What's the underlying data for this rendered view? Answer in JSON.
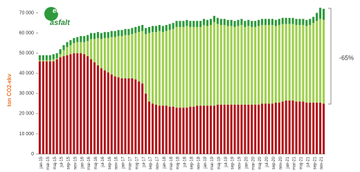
{
  "chart_data": {
    "type": "stacked-bar",
    "y_label": "ton CO2-ekv",
    "annotation": "-65%",
    "logo": {
      "top": "eco",
      "bottom": "asfalt"
    },
    "categories": [
      "jan-15",
      null,
      "mar-15",
      null,
      "maj-15",
      null,
      "jul-15",
      null,
      "sep-15",
      null,
      "nov-15",
      null,
      "jan-16",
      null,
      "mar-16",
      null,
      "maj-16",
      null,
      "jul-16",
      null,
      "sep-16",
      null,
      "nov-16",
      null,
      "jan-17",
      null,
      "mar-17",
      null,
      "maj-17",
      null,
      "jul-17",
      null,
      "sep-17",
      null,
      "nov-17",
      null,
      "jan-18",
      null,
      "mar-18",
      null,
      "maj-18",
      null,
      "jul-18",
      null,
      "sep-18",
      null,
      "nov-18",
      null,
      "jan-19",
      null,
      "mar-19",
      null,
      "maj-19",
      null,
      "jul-19",
      null,
      "sep-19",
      null,
      "nov-19",
      null,
      "jan-20",
      null,
      "mar-20",
      null,
      "maj-20",
      null,
      "jul-20",
      null,
      "sep-20",
      null,
      "nov-20",
      null,
      "jan-21",
      null,
      "mar-21",
      null,
      "maj-21",
      null,
      "jul-21",
      null,
      "sep-21",
      null,
      "nov-21",
      null
    ],
    "series": [
      {
        "color": "#b0161b",
        "values": [
          46000,
          46000,
          46000,
          46000,
          46000,
          47000,
          48000,
          48500,
          49000,
          49500,
          50000,
          50000,
          50000,
          49500,
          48500,
          47000,
          45500,
          44000,
          42500,
          41500,
          40500,
          39500,
          38500,
          38000,
          37500,
          37500,
          37500,
          37500,
          37000,
          36000,
          35000,
          30000,
          26000,
          25000,
          24500,
          24000,
          24000,
          24000,
          23500,
          23500,
          23000,
          23000,
          23000,
          23000,
          23500,
          23500,
          24000,
          24000,
          24000,
          24000,
          24000,
          24000,
          24500,
          24500,
          24500,
          24500,
          24500,
          24500,
          24500,
          24500,
          24500,
          24500,
          24500,
          24500,
          24500,
          25000,
          25000,
          25000,
          25000,
          25500,
          25500,
          26000,
          26500,
          26500,
          26500,
          26000,
          26000,
          26000,
          25500,
          25500,
          25500,
          25500,
          25500,
          25000
        ]
      },
      {
        "color": "#9fd04f",
        "values": [
          500,
          500,
          500,
          500,
          1000,
          500,
          1500,
          3000,
          4000,
          4500,
          5000,
          5500,
          5500,
          6000,
          7500,
          10000,
          11500,
          13500,
          14500,
          16000,
          17000,
          18500,
          19500,
          20500,
          21000,
          21500,
          21500,
          22000,
          23000,
          24500,
          26000,
          29500,
          34000,
          35500,
          36000,
          37000,
          36500,
          37000,
          38000,
          38500,
          40000,
          40000,
          40000,
          40500,
          39500,
          39500,
          39000,
          39000,
          40000,
          39500,
          40000,
          41500,
          40000,
          39500,
          39500,
          39000,
          39000,
          38500,
          39000,
          39500,
          38500,
          39000,
          38500,
          38500,
          39000,
          39000,
          39000,
          39000,
          39000,
          38000,
          38500,
          38500,
          38000,
          38000,
          38000,
          38000,
          38000,
          38000,
          38000,
          38500,
          39500,
          40500,
          41500,
          41500
        ]
      },
      {
        "color": "#2e9a3c",
        "values": [
          2500,
          2500,
          2500,
          2500,
          2500,
          2500,
          2500,
          2500,
          2500,
          2500,
          2500,
          2500,
          3000,
          3000,
          3000,
          3000,
          3000,
          3000,
          3000,
          3000,
          3000,
          3000,
          3000,
          3000,
          3000,
          3000,
          3000,
          3000,
          3000,
          3000,
          3000,
          3000,
          3000,
          3000,
          3000,
          3000,
          3000,
          3000,
          3000,
          3000,
          3000,
          3000,
          3000,
          3000,
          3000,
          3000,
          3000,
          3000,
          3000,
          3000,
          3000,
          3000,
          3000,
          3000,
          3000,
          3000,
          3000,
          3000,
          3000,
          3000,
          3000,
          3000,
          3000,
          3000,
          3000,
          3000,
          3000,
          3000,
          3000,
          3000,
          3000,
          3000,
          3000,
          3000,
          3000,
          3000,
          3000,
          3000,
          3000,
          3000,
          3000,
          4000,
          5500,
          5500
        ]
      }
    ],
    "ylim": [
      0,
      75000
    ],
    "yticks": [
      0,
      {
        "value": 10000,
        "label": "10 000"
      },
      {
        "value": 20000,
        "label": "20 000"
      },
      {
        "value": 30000,
        "label": "30 000"
      },
      {
        "value": 40000,
        "label": "40 000"
      },
      {
        "value": 50000,
        "label": "50 000"
      },
      {
        "value": 60000,
        "label": "60 000"
      },
      {
        "value": 70000,
        "label": "70 000"
      }
    ],
    "grid": false
  }
}
